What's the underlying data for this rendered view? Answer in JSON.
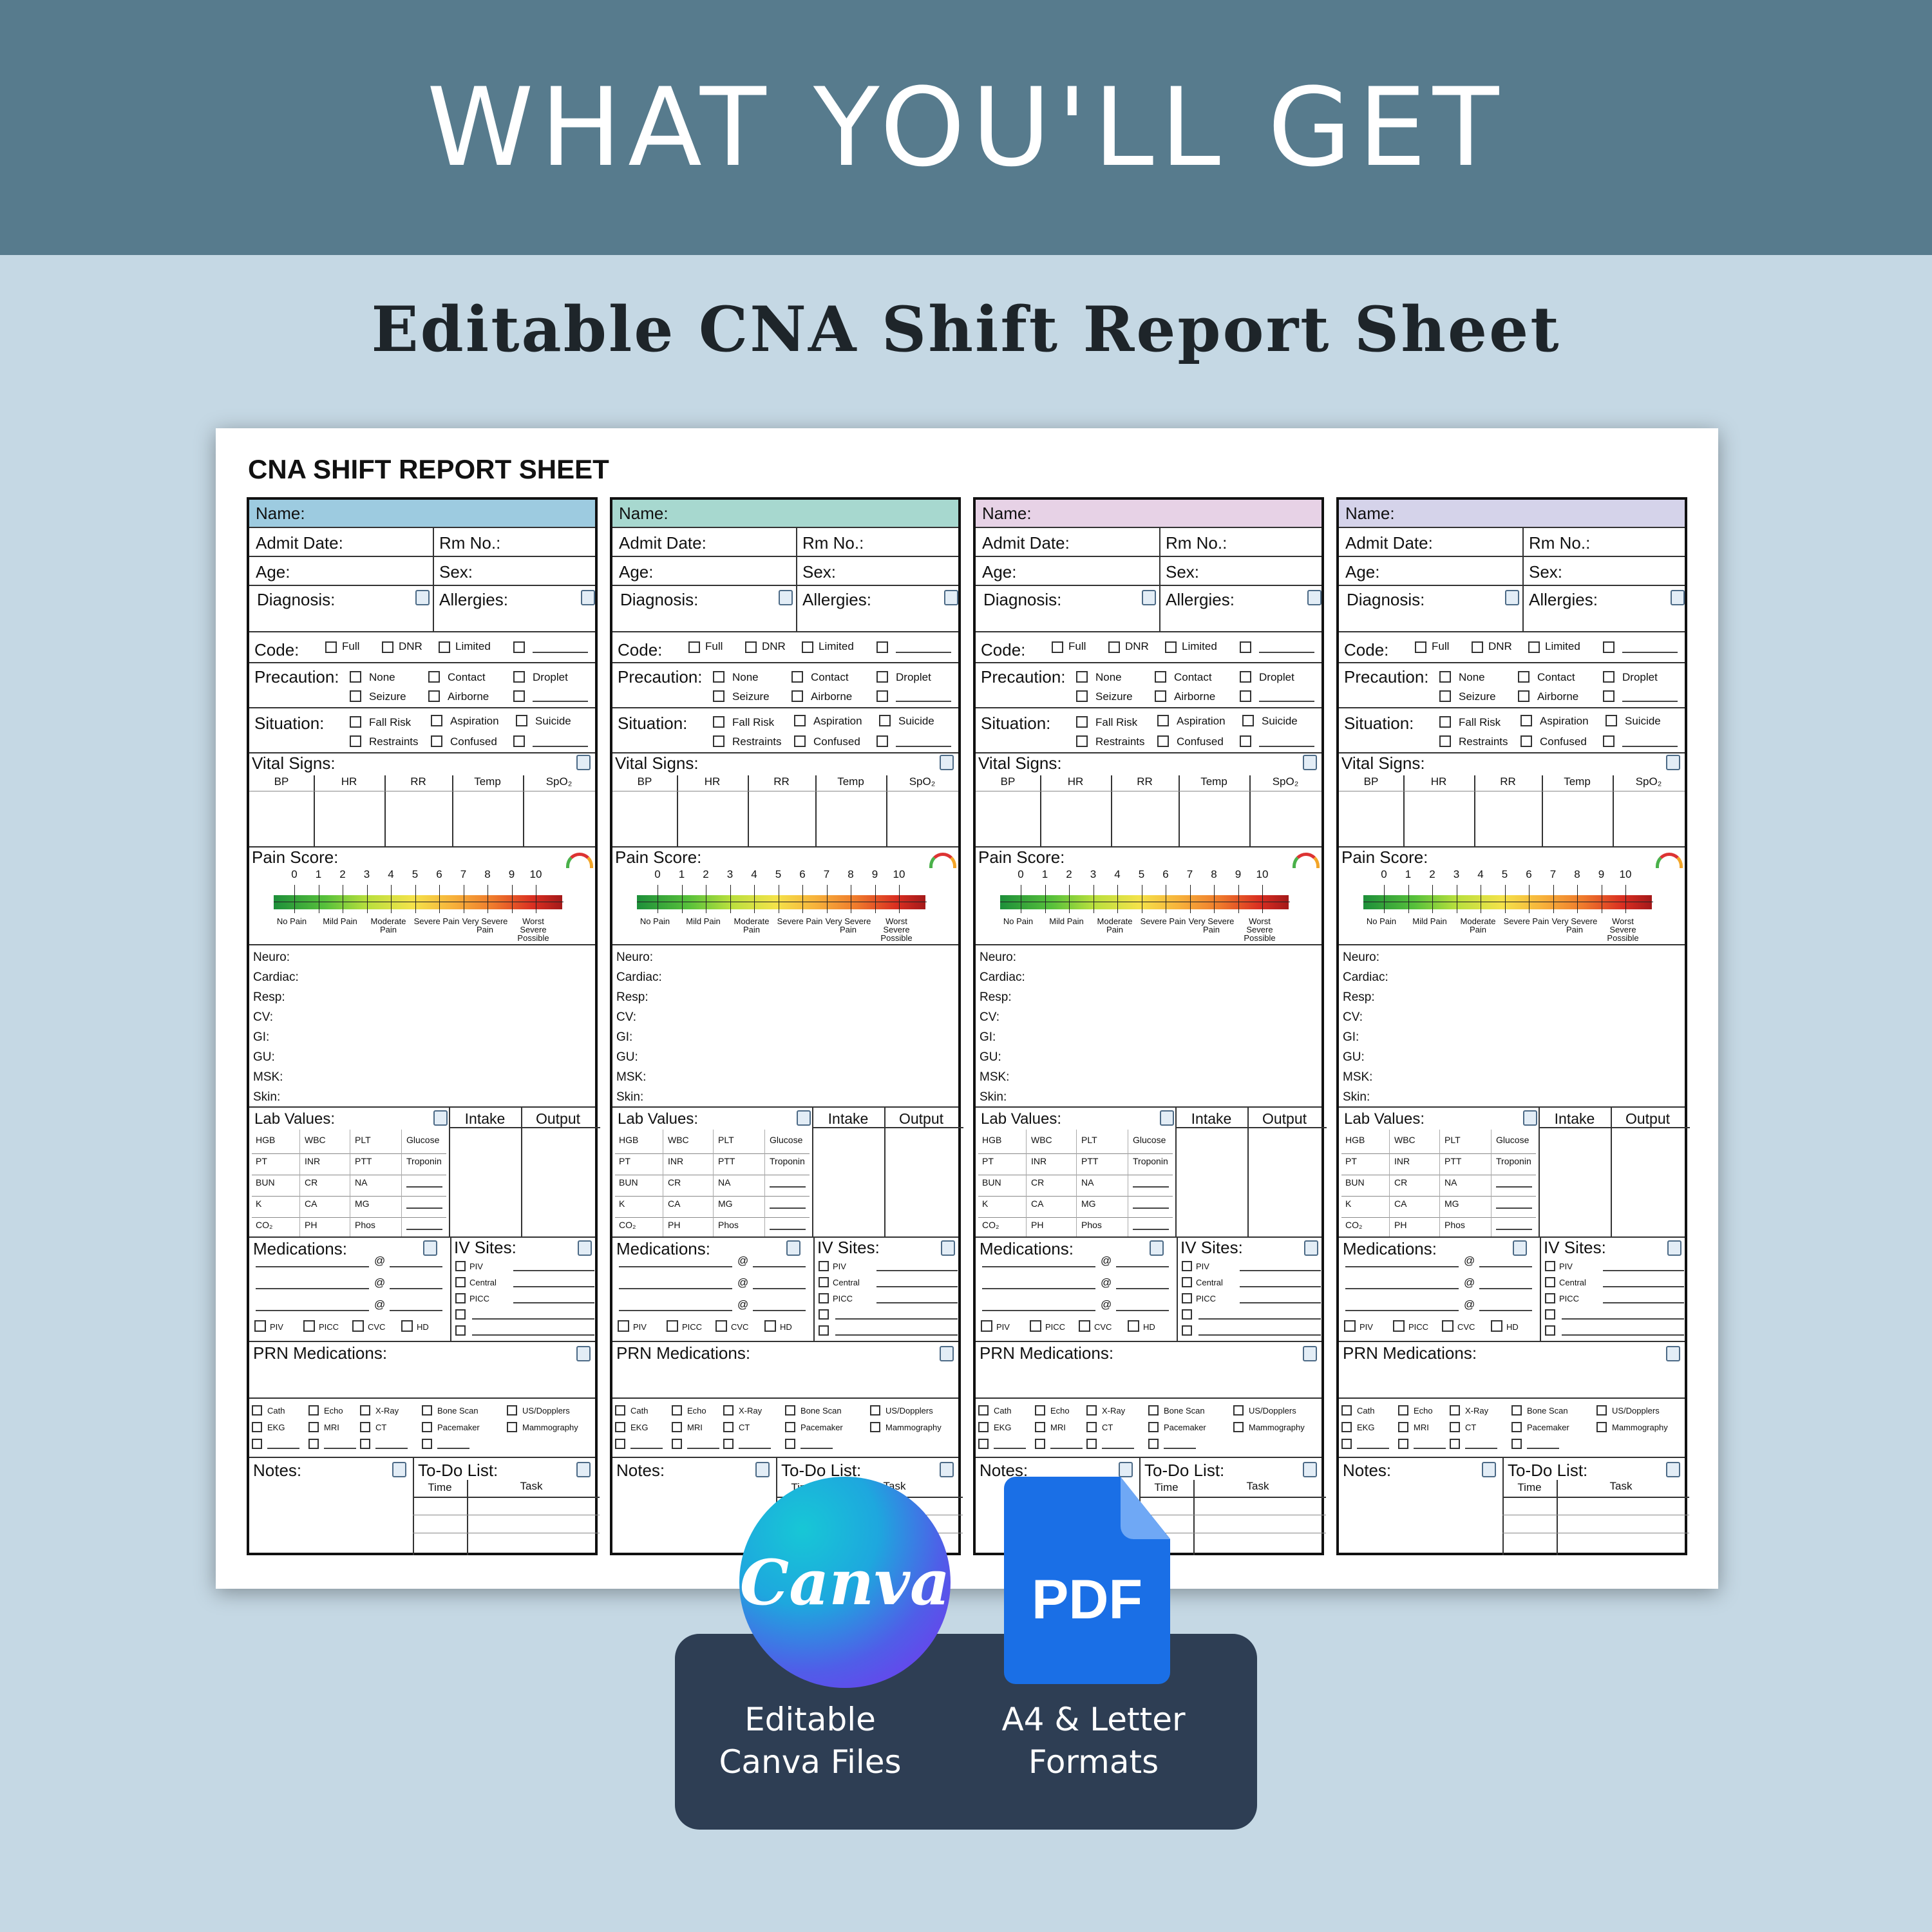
{
  "banner": {
    "title": "WHAT YOU'LL GET"
  },
  "subtitle": "Editable CNA Shift Report Sheet",
  "sheet": {
    "title": "CNA SHIFT REPORT SHEET",
    "columns": [
      {
        "name_color": "#9dcbe0"
      },
      {
        "name_color": "#a7d8cf"
      },
      {
        "name_color": "#e7d2e6"
      },
      {
        "name_color": "#d5d3ea"
      }
    ],
    "labels": {
      "name": "Name:",
      "admit_date": "Admit Date:",
      "rm_no": "Rm No.:",
      "age": "Age:",
      "sex": "Sex:",
      "diagnosis": "Diagnosis:",
      "allergies": "Allergies:",
      "code": "Code:",
      "code_options": [
        "Full",
        "DNR",
        "Limited"
      ],
      "precaution": "Precaution:",
      "precaution_options": [
        "None",
        "Contact",
        "Droplet",
        "Seizure",
        "Airborne"
      ],
      "situation": "Situation:",
      "situation_options": [
        "Fall Risk",
        "Aspiration",
        "Suicide",
        "Restraints",
        "Confused"
      ],
      "vital_signs": "Vital Signs:",
      "vitals": [
        "BP",
        "HR",
        "RR",
        "Temp",
        "SpO₂"
      ],
      "pain_score": "Pain Score:",
      "pain_numbers": [
        "0",
        "1",
        "2",
        "3",
        "4",
        "5",
        "6",
        "7",
        "8",
        "9",
        "10"
      ],
      "pain_words": [
        "No Pain",
        "Mild Pain",
        "Moderate Pain",
        "Severe Pain",
        "Very Severe Pain",
        "Worst Severe Possible"
      ],
      "systems": [
        "Neuro:",
        "Cardiac:",
        "Resp:",
        "CV:",
        "GI:",
        "GU:",
        "MSK:",
        "Skin:"
      ],
      "lab_values": "Lab Values:",
      "labs": [
        [
          "HGB",
          "WBC",
          "PLT",
          "Glucose"
        ],
        [
          "PT",
          "INR",
          "PTT",
          "Troponin"
        ],
        [
          "BUN",
          "CR",
          "NA",
          ""
        ],
        [
          "K",
          "CA",
          "MG",
          ""
        ],
        [
          "CO₂",
          "PH",
          "Phos",
          ""
        ]
      ],
      "intake": "Intake",
      "output": "Output",
      "medications": "Medications:",
      "at": "@",
      "line_types": [
        "PIV",
        "PICC",
        "CVC",
        "HD"
      ],
      "iv_sites": "IV Sites:",
      "iv_options": [
        "PIV",
        "Central",
        "PICC"
      ],
      "prn": "PRN Medications:",
      "tests": [
        [
          "Cath",
          "Echo",
          "X-Ray",
          "Bone Scan",
          "US/Dopplers"
        ],
        [
          "EKG",
          "MRI",
          "CT",
          "Pacemaker",
          "Mammography"
        ]
      ],
      "notes": "Notes:",
      "todo": "To-Do List:",
      "time": "Time",
      "task": "Task"
    }
  },
  "badges": {
    "canva_logo": "Canva",
    "pdf_logo": "PDF",
    "canva_caption_1": "Editable",
    "canva_caption_2": "Canva Files",
    "pdf_caption_1": "A4 & Letter",
    "pdf_caption_2": "Formats"
  }
}
